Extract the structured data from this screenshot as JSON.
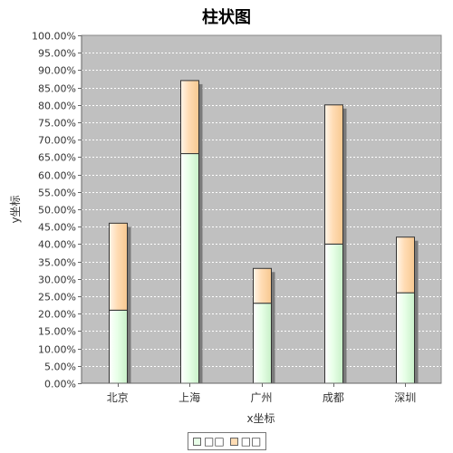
{
  "chart_data": {
    "type": "bar",
    "stacked": true,
    "title": "柱状图",
    "xlabel": "x坐标",
    "ylabel": "y坐标",
    "categories": [
      "北京",
      "上海",
      "广州",
      "成都",
      "深圳"
    ],
    "series": [
      {
        "name": "□□",
        "values": [
          21,
          66,
          23,
          40,
          26
        ],
        "color": "#e8ffe8"
      },
      {
        "name": "□□",
        "values": [
          25,
          21,
          10,
          40,
          16
        ],
        "color": "#ffdcb4"
      }
    ],
    "ylim": [
      0,
      100
    ],
    "ytick_step": 5,
    "ytick_format": "percent-2dp",
    "grid": true,
    "legend_position": "bottom",
    "plot_background": "#c0c0c0"
  }
}
